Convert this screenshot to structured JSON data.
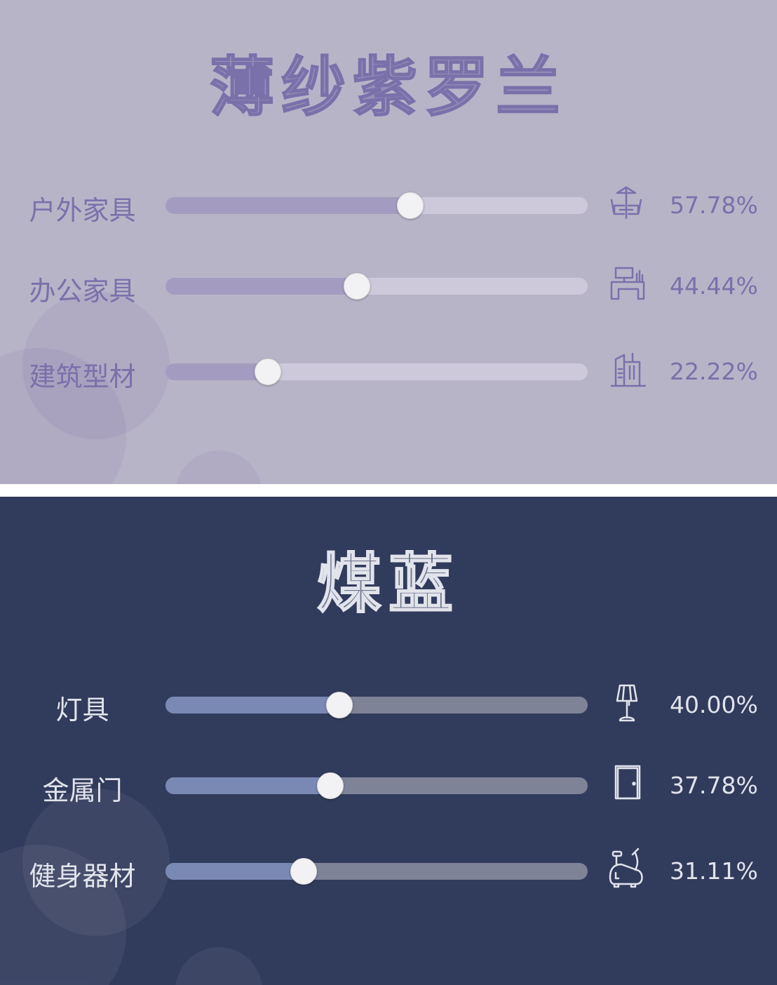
{
  "panels": [
    {
      "title": "薄纱紫罗兰",
      "colors": {
        "bg": "#b8b4c8",
        "text": "#7a70aa",
        "fill": "#a49cc0",
        "rest": "#cdc9da"
      },
      "items": [
        {
          "label": "户外家具",
          "value": 57.78,
          "percent": "57.78%",
          "icon": "outdoor-furniture-icon"
        },
        {
          "label": "办公家具",
          "value": 44.44,
          "percent": "44.44%",
          "icon": "office-desk-icon"
        },
        {
          "label": "建筑型材",
          "value": 22.22,
          "percent": "22.22%",
          "icon": "building-icon"
        }
      ]
    },
    {
      "title": "煤蓝",
      "colors": {
        "bg": "#313b5c",
        "text": "#e2e4ec",
        "fill": "#7a88b4",
        "rest": "#7e8398"
      },
      "items": [
        {
          "label": "灯具",
          "value": 40.0,
          "percent": "40.00%",
          "icon": "lamp-icon"
        },
        {
          "label": "金属门",
          "value": 37.78,
          "percent": "37.78%",
          "icon": "door-icon"
        },
        {
          "label": "健身器材",
          "value": 31.11,
          "percent": "31.11%",
          "icon": "exercise-bike-icon"
        }
      ]
    }
  ]
}
